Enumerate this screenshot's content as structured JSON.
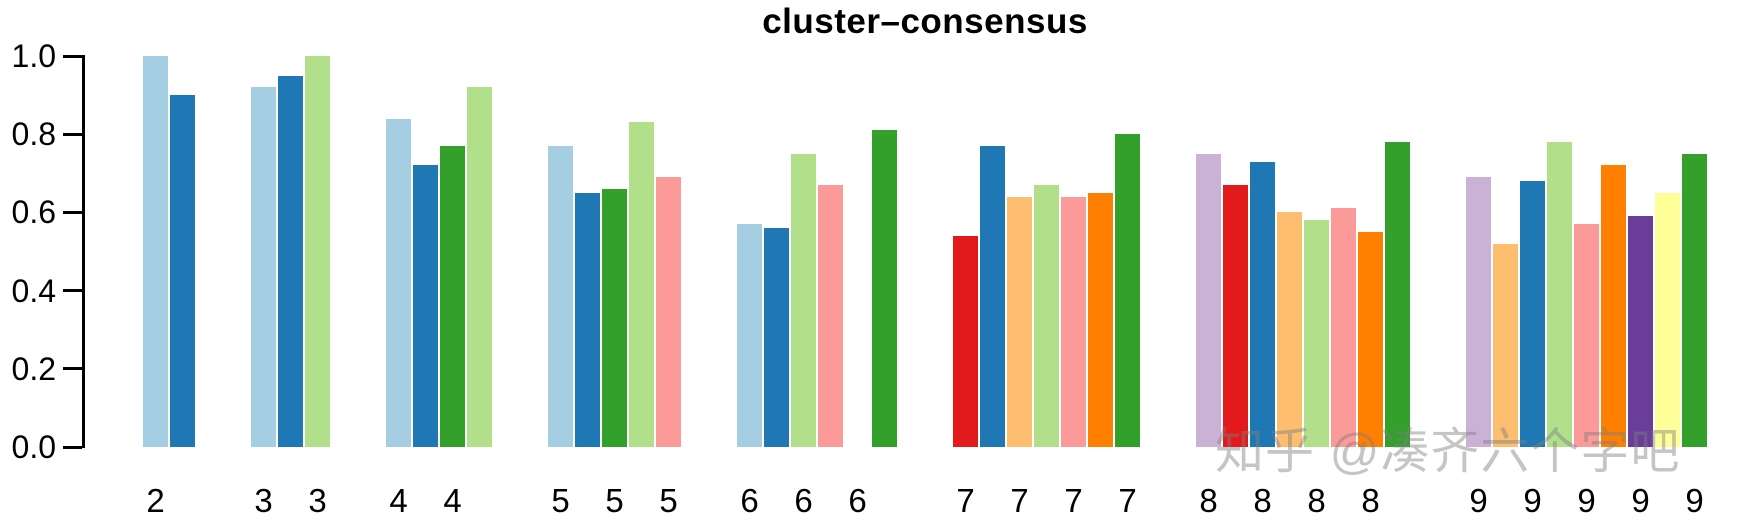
{
  "watermark": "知乎 @凑齐六个字吧",
  "chart_data": {
    "type": "bar",
    "title": "cluster–consensus",
    "xlabel": "",
    "ylabel": "",
    "ylim": [
      0.0,
      1.0
    ],
    "grid": false,
    "legend": "none",
    "y_tick_labels": [
      "0.0",
      "0.2",
      "0.4",
      "0.6",
      "0.8",
      "1.0"
    ],
    "y_tick_values": [
      0.0,
      0.2,
      0.4,
      0.6,
      0.8,
      1.0
    ],
    "x_tick_labels_visible": [
      "2",
      "3",
      "3",
      "4",
      "4",
      "5",
      "5",
      "5",
      "6",
      "6",
      "6",
      "7",
      "7",
      "7",
      "7",
      "8",
      "8",
      "8",
      "8",
      "9",
      "9",
      "9",
      "9",
      "9"
    ],
    "x_label_rule": "group label printed under every odd bar (1st, 3rd, 5th ...) of its group",
    "palette": {
      "lightblue": "#A6CEE3",
      "darkblue": "#1F78B4",
      "lightgreen": "#B2DF8A",
      "darkgreen": "#33A02C",
      "pink": "#FB9A99",
      "red": "#E31A1C",
      "lightorange": "#FDBF6F",
      "orange": "#FF7F00",
      "lavender": "#CAB2D6",
      "purple": "#6A3D9A",
      "yellow": "#FFFF99"
    },
    "groups": [
      {
        "label": "2",
        "bars": [
          {
            "value": 1.0,
            "color": "lightblue"
          },
          {
            "value": 0.9,
            "color": "darkblue"
          }
        ]
      },
      {
        "label": "3",
        "bars": [
          {
            "value": 0.92,
            "color": "lightblue"
          },
          {
            "value": 0.95,
            "color": "darkblue"
          },
          {
            "value": 1.0,
            "color": "lightgreen"
          }
        ]
      },
      {
        "label": "4",
        "bars": [
          {
            "value": 0.84,
            "color": "lightblue"
          },
          {
            "value": 0.72,
            "color": "darkblue"
          },
          {
            "value": 0.77,
            "color": "darkgreen"
          },
          {
            "value": 0.92,
            "color": "lightgreen"
          }
        ]
      },
      {
        "label": "5",
        "bars": [
          {
            "value": 0.77,
            "color": "lightblue"
          },
          {
            "value": 0.65,
            "color": "darkblue"
          },
          {
            "value": 0.66,
            "color": "darkgreen"
          },
          {
            "value": 0.83,
            "color": "lightgreen"
          },
          {
            "value": 0.69,
            "color": "pink"
          }
        ]
      },
      {
        "label": "6",
        "bars": [
          {
            "value": 0.57,
            "color": "lightblue"
          },
          {
            "value": 0.56,
            "color": "darkblue"
          },
          {
            "value": 0.75,
            "color": "lightgreen"
          },
          {
            "value": 0.67,
            "color": "pink"
          },
          {
            "value": 0.0,
            "color": null
          },
          {
            "value": 0.81,
            "color": "darkgreen"
          }
        ]
      },
      {
        "label": "7",
        "bars": [
          {
            "value": 0.54,
            "color": "red"
          },
          {
            "value": 0.77,
            "color": "darkblue"
          },
          {
            "value": 0.64,
            "color": "lightorange"
          },
          {
            "value": 0.67,
            "color": "lightgreen"
          },
          {
            "value": 0.64,
            "color": "pink"
          },
          {
            "value": 0.65,
            "color": "orange"
          },
          {
            "value": 0.8,
            "color": "darkgreen"
          }
        ]
      },
      {
        "label": "8",
        "bars": [
          {
            "value": 0.75,
            "color": "lavender"
          },
          {
            "value": 0.67,
            "color": "red"
          },
          {
            "value": 0.73,
            "color": "darkblue"
          },
          {
            "value": 0.6,
            "color": "lightorange"
          },
          {
            "value": 0.58,
            "color": "lightgreen"
          },
          {
            "value": 0.61,
            "color": "pink"
          },
          {
            "value": 0.55,
            "color": "orange"
          },
          {
            "value": 0.78,
            "color": "darkgreen"
          }
        ]
      },
      {
        "label": "9",
        "bars": [
          {
            "value": 0.69,
            "color": "lavender"
          },
          {
            "value": 0.52,
            "color": "lightorange"
          },
          {
            "value": 0.68,
            "color": "darkblue"
          },
          {
            "value": 0.78,
            "color": "lightgreen"
          },
          {
            "value": 0.57,
            "color": "pink"
          },
          {
            "value": 0.72,
            "color": "orange"
          },
          {
            "value": 0.59,
            "color": "purple"
          },
          {
            "value": 0.65,
            "color": "yellow"
          },
          {
            "value": 0.75,
            "color": "darkgreen"
          }
        ]
      }
    ]
  }
}
